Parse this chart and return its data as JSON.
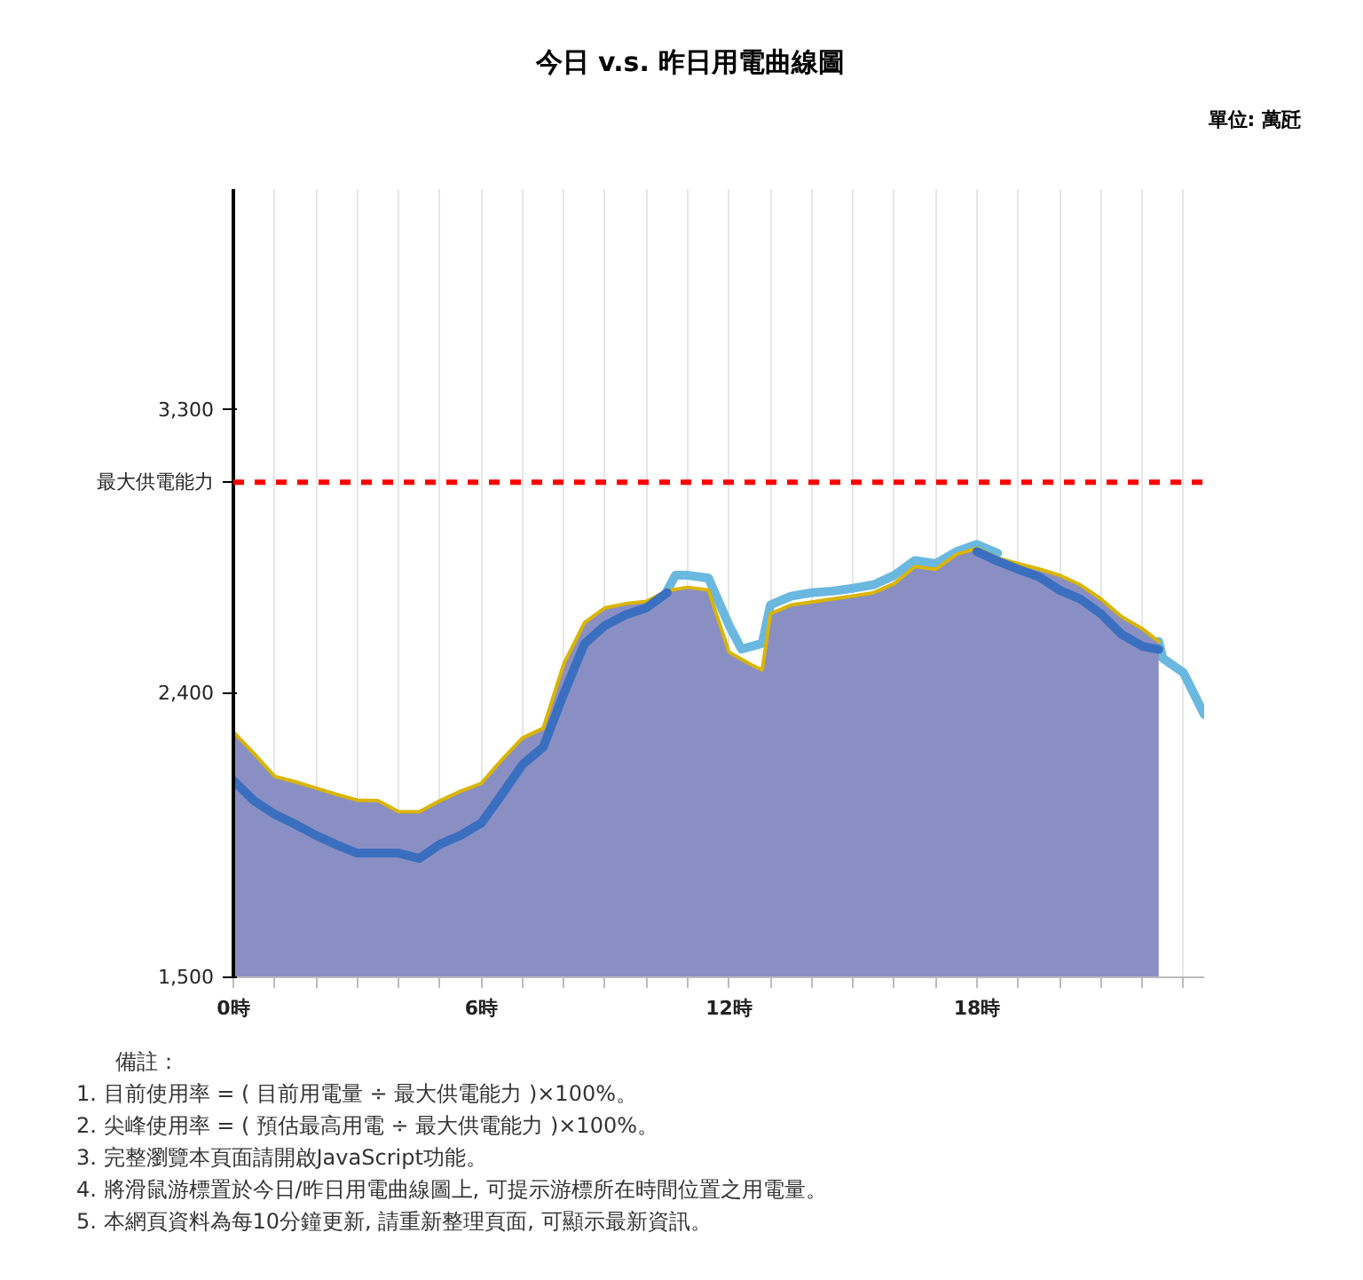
{
  "chart_data": {
    "type": "line",
    "title": "今日 v.s. 昨日用電曲線圖",
    "subtitle": "單位: 萬瓩",
    "xlim": [
      0,
      23.5
    ],
    "ylim": [
      1500,
      4000
    ],
    "xticks": [
      {
        "value": 0,
        "label": "0時"
      },
      {
        "value": 1,
        "label": null
      },
      {
        "value": 2,
        "label": null
      },
      {
        "value": 3,
        "label": null
      },
      {
        "value": 4,
        "label": null
      },
      {
        "value": 5,
        "label": null
      },
      {
        "value": 6,
        "label": "6時"
      },
      {
        "value": 7,
        "label": null
      },
      {
        "value": 8,
        "label": null
      },
      {
        "value": 9,
        "label": null
      },
      {
        "value": 10,
        "label": null
      },
      {
        "value": 11,
        "label": null
      },
      {
        "value": 12,
        "label": "12時"
      },
      {
        "value": 13,
        "label": null
      },
      {
        "value": 14,
        "label": null
      },
      {
        "value": 15,
        "label": null
      },
      {
        "value": 16,
        "label": null
      },
      {
        "value": 17,
        "label": null
      },
      {
        "value": 18,
        "label": "18時"
      },
      {
        "value": 19,
        "label": null
      },
      {
        "value": 20,
        "label": null
      },
      {
        "value": 21,
        "label": null
      },
      {
        "value": 22,
        "label": null
      },
      {
        "value": 23,
        "label": null
      }
    ],
    "yticks": [
      {
        "value": 1500,
        "label": "1,500"
      },
      {
        "value": 2400,
        "label": "2,400"
      },
      {
        "value": 3300,
        "label": "3,300"
      }
    ],
    "grid": "x",
    "ref_lines": [
      {
        "axis": "y",
        "value": 3070,
        "label": "最大供電能力",
        "color": "#ff0000",
        "line_style": "dashed"
      }
    ],
    "series": [
      {
        "color": "#6ab8e0",
        "x": [
          10.5,
          10.7,
          11,
          11.5,
          12,
          12.3,
          12.8,
          13,
          13.5,
          14,
          14.5,
          15,
          15.5,
          16,
          16.5,
          17,
          17.5,
          18,
          18.5,
          20,
          22.4,
          22.5,
          23,
          23.5
        ],
        "values": [
          2726,
          2775,
          2775,
          2766,
          2616,
          2541,
          2559,
          2681,
          2709,
          2720,
          2725,
          2734,
          2745,
          2775,
          2822,
          2812,
          2850,
          2873,
          2845,
          null,
          2565,
          2512,
          2466,
          2334
        ]
      },
      {
        "type": "area",
        "color": "#8a8fc3",
        "x": [
          0,
          0.5,
          1,
          1.5,
          2,
          2.5,
          3,
          3.5,
          4,
          4.5,
          5,
          5.5,
          6,
          6.5,
          7,
          7.5,
          8,
          8.5,
          9,
          9.5,
          10,
          10.5,
          11,
          11.5,
          12,
          12.5,
          12.8,
          13,
          13.5,
          14,
          14.5,
          15,
          15.5,
          16,
          16.5,
          17,
          17.5,
          18,
          18.5,
          19,
          19.5,
          20,
          20.5,
          21,
          21.5,
          22,
          22.4
        ],
        "values": [
          2278,
          2210,
          2137,
          2120,
          2100,
          2080,
          2062,
          2060,
          2025,
          2025,
          2060,
          2090,
          2115,
          2190,
          2259,
          2290,
          2495,
          2625,
          2672,
          2685,
          2692,
          2726,
          2737,
          2728,
          2531,
          2494,
          2475,
          2653,
          2681,
          2690,
          2700,
          2709,
          2720,
          2749,
          2803,
          2794,
          2841,
          2861,
          2830,
          2812,
          2795,
          2775,
          2745,
          2700,
          2644,
          2606,
          2565
        ]
      },
      {
        "color": "#d9b500",
        "x": [
          0,
          0.5,
          1,
          1.5,
          2,
          2.5,
          3,
          3.5,
          4,
          4.5,
          5,
          5.5,
          6,
          6.5,
          7,
          7.5,
          8,
          8.5,
          9,
          9.5,
          10,
          10.5,
          11,
          11.5,
          12,
          12.5,
          12.8,
          13,
          13.5,
          14,
          14.5,
          15,
          15.5,
          16,
          16.5,
          17,
          17.5,
          18,
          18.5,
          19,
          19.5,
          20,
          20.5,
          21,
          21.5,
          22,
          22.4
        ],
        "values": [
          2278,
          2210,
          2137,
          2120,
          2100,
          2080,
          2062,
          2060,
          2025,
          2025,
          2060,
          2090,
          2115,
          2190,
          2259,
          2290,
          2495,
          2625,
          2672,
          2685,
          2692,
          2726,
          2737,
          2728,
          2531,
          2494,
          2475,
          2653,
          2681,
          2690,
          2700,
          2709,
          2720,
          2749,
          2803,
          2794,
          2841,
          2861,
          2830,
          2812,
          2795,
          2775,
          2745,
          2700,
          2644,
          2606,
          2565
        ]
      },
      {
        "color": "#3a6fc0",
        "x": [
          0,
          0.5,
          1,
          1.5,
          2,
          2.5,
          3,
          3.5,
          4,
          4.5,
          5,
          5.5,
          6,
          6.5,
          7,
          7.5,
          8,
          8.5,
          9,
          9.5,
          10,
          10.5,
          14,
          18,
          18.5,
          19,
          19.5,
          20,
          20.5,
          21,
          21.5,
          22,
          22.4
        ],
        "values": [
          2124,
          2060,
          2017,
          1985,
          1950,
          1920,
          1894,
          1894,
          1894,
          1877,
          1922,
          1950,
          1989,
          2080,
          2175,
          2230,
          2400,
          2558,
          2616,
          2650,
          2672,
          2720,
          null,
          2850,
          2820,
          2794,
          2770,
          2728,
          2700,
          2653,
          2588,
          2550,
          2540
        ]
      }
    ],
    "annotations": [
      "備註：",
      "1. 目前使用率 = ( 目前用電量 ÷ 最大供電能力 )×100%。",
      "2. 尖峰使用率 = ( 預估最高用電 ÷ 最大供電能力 )×100%。",
      "3. 完整瀏覽本頁面請開啟JavaScript功能。",
      "4. 將滑鼠游標置於今日/昨日用電曲線圖上, 可提示游標所在時間位置之用電量。",
      "5. 本網頁資料為每10分鐘更新, 請重新整理頁面, 可顯示最新資訊。"
    ]
  }
}
